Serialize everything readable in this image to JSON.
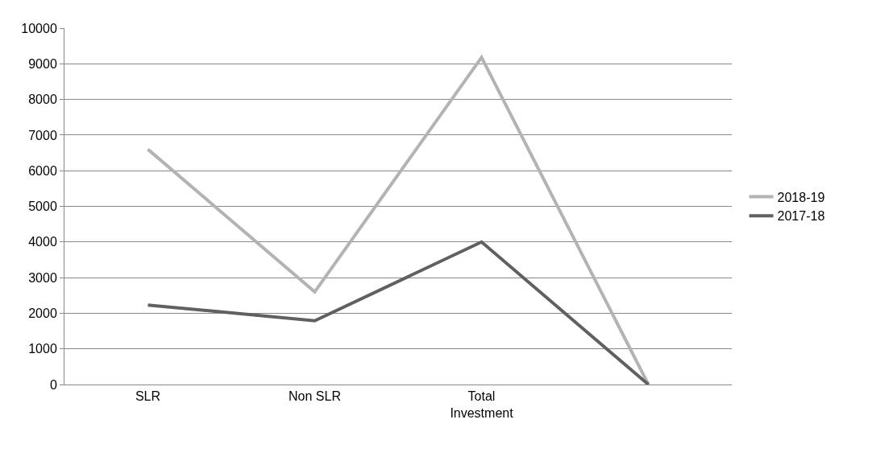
{
  "chart_data": {
    "type": "line",
    "categories": [
      "SLR",
      "Non SLR",
      "Total\nInvestment",
      null
    ],
    "series": [
      {
        "name": "2018-19",
        "color": "#b3b3b3",
        "values": [
          6600,
          2600,
          9180,
          0
        ]
      },
      {
        "name": "2017-18",
        "color": "#606060",
        "values": [
          2230,
          1790,
          4000,
          0
        ]
      }
    ],
    "ylim": [
      0,
      10000
    ],
    "yticks": [
      0,
      1000,
      2000,
      3000,
      4000,
      5000,
      6000,
      7000,
      8000,
      9000,
      10000
    ],
    "grid": "y",
    "legend": "right",
    "marker": "none",
    "line_style": "solid"
  }
}
